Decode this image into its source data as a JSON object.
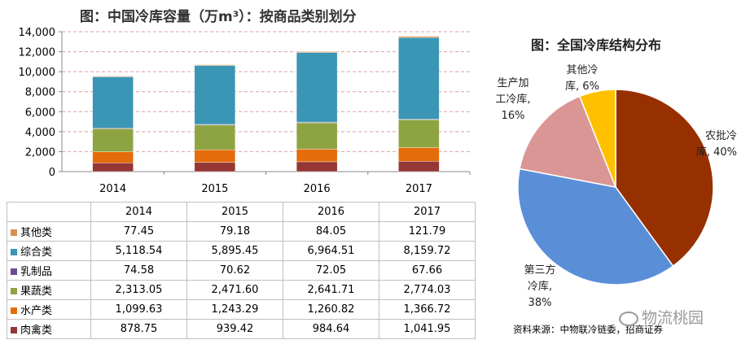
{
  "header": {
    "title": "图：中国冷库容量（万m³）：按商品类别划分"
  },
  "chart_data": [
    {
      "type": "bar",
      "stacked": true,
      "title": "图：中国冷库容量（万m³）：按商品类别划分",
      "categories": [
        "2014",
        "2015",
        "2016",
        "2017"
      ],
      "ylim": [
        0,
        14000
      ],
      "yticks": [
        "0",
        "2,000",
        "4,000",
        "6,000",
        "8,000",
        "10,000",
        "12,000",
        "14,000"
      ],
      "grid": true,
      "series": [
        {
          "name": "肉禽类",
          "color": "#953735",
          "values": [
            878.75,
            939.42,
            984.64,
            1041.95
          ],
          "display": [
            "878.75",
            "939.42",
            "984.64",
            "1,041.95"
          ]
        },
        {
          "name": "水产类",
          "color": "#e46c0a",
          "values": [
            1099.63,
            1243.29,
            1260.82,
            1366.72
          ],
          "display": [
            "1,099.63",
            "1,243.29",
            "1,260.82",
            "1,366.72"
          ]
        },
        {
          "name": "果蔬类",
          "color": "#8ea443",
          "values": [
            2313.05,
            2471.6,
            2641.71,
            2774.03
          ],
          "display": [
            "2,313.05",
            "2,471.60",
            "2,641.71",
            "2,774.03"
          ]
        },
        {
          "name": "乳制品",
          "color": "#6a4c93",
          "values": [
            74.58,
            70.62,
            72.05,
            67.66
          ],
          "display": [
            "74.58",
            "70.62",
            "72.05",
            "67.66"
          ]
        },
        {
          "name": "综合类",
          "color": "#3a96b4",
          "values": [
            5118.54,
            5895.45,
            6964.51,
            8159.72
          ],
          "display": [
            "5,118.54",
            "5,895.45",
            "6,964.51",
            "8,159.72"
          ]
        },
        {
          "name": "其他类",
          "color": "#db8f4e",
          "values": [
            77.45,
            79.18,
            84.05,
            121.79
          ],
          "display": [
            "77.45",
            "79.18",
            "84.05",
            "121.79"
          ]
        }
      ],
      "table_row_order": [
        "其他类",
        "综合类",
        "乳制品",
        "果蔬类",
        "水产类",
        "肉禽类"
      ]
    },
    {
      "type": "pie",
      "title": "图：全国冷库结构分布",
      "slices": [
        {
          "label_lines": [
            "农批冷",
            "库, 40%"
          ],
          "value": 40,
          "color": "#973000"
        },
        {
          "label_lines": [
            "第三方",
            "冷库,",
            "38%"
          ],
          "value": 38,
          "color": "#5a8fd8"
        },
        {
          "label_lines": [
            "生产加",
            "工冷库,",
            "16%"
          ],
          "value": 16,
          "color": "#d99694"
        },
        {
          "label_lines": [
            "其他冷",
            "库, 6%"
          ],
          "value": 6,
          "color": "#ffc000"
        }
      ]
    }
  ],
  "source": "资料来源：中物联冷链委，招商证券",
  "watermark": "物流桃园"
}
